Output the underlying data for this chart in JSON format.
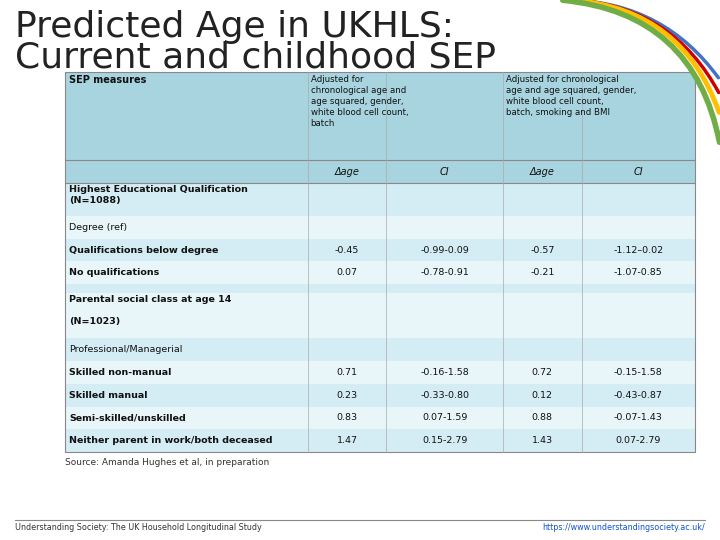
{
  "title_line1": "Predicted Age in UKHLS:",
  "title_line2": "Current and childhood SEP",
  "title_fontsize": 26,
  "title_color": "#222222",
  "bg_color": "#ffffff",
  "table_header_bg": "#a8d4e0",
  "header_col1": "SEP measures",
  "header_col2": "Adjusted for\nchronological age and\nage squared, gender,\nwhite blood cell count,\nbatch",
  "header_col3": "Adjusted for chronological\nage and age squared, gender,\nwhite blood cell count,\nbatch, smoking and BMI",
  "subheader": [
    "Δage",
    "CI",
    "Δage",
    "CI"
  ],
  "rows": [
    {
      "label": "Highest Educational Qualification\n(N=1088)",
      "bold": true,
      "data": [
        "",
        "",
        "",
        ""
      ],
      "bg": "#d4ecf4"
    },
    {
      "label": "Degree (ref)",
      "bold": false,
      "data": [
        "",
        "",
        "",
        ""
      ],
      "bg": "#e8f6fa"
    },
    {
      "label": "Qualifications below degree",
      "bold": true,
      "data": [
        "-0.45",
        "-0.99-0.09",
        "-0.57",
        "-1.12–0.02"
      ],
      "bg": "#d4ecf4"
    },
    {
      "label": "No qualifications",
      "bold": true,
      "data": [
        "0.07",
        "-0.78-0.91",
        "-0.21",
        "-1.07-0.85"
      ],
      "bg": "#e8f6fa"
    },
    {
      "label": "",
      "bold": false,
      "data": [
        "",
        "",
        "",
        ""
      ],
      "bg": "#d4ecf4"
    },
    {
      "label": "Parental social class at age 14\n\n(N=1023)",
      "bold": true,
      "data": [
        "",
        "",
        "",
        ""
      ],
      "bg": "#e8f6fa"
    },
    {
      "label": "Professional/Managerial",
      "bold": false,
      "data": [
        "",
        "",
        "",
        ""
      ],
      "bg": "#d4ecf4"
    },
    {
      "label": "Skilled non-manual",
      "bold": true,
      "data": [
        "0.71",
        "-0.16-1.58",
        "0.72",
        "-0.15-1.58"
      ],
      "bg": "#e8f6fa"
    },
    {
      "label": "Skilled manual",
      "bold": true,
      "data": [
        "0.23",
        "-0.33-0.80",
        "0.12",
        "-0.43-0.87"
      ],
      "bg": "#d4ecf4"
    },
    {
      "label": "Semi-skilled/unskilled",
      "bold": true,
      "data": [
        "0.83",
        "0.07-1.59",
        "0.88",
        "-0.07-1.43"
      ],
      "bg": "#e8f6fa"
    },
    {
      "label": "Neither parent in work/both deceased",
      "bold": true,
      "data": [
        "1.47",
        "0.15-2.79",
        "1.43",
        "0.07-2.79"
      ],
      "bg": "#d4ecf4"
    }
  ],
  "source_text": "Source: Amanda Hughes et al, in preparation",
  "footer_left": "Understanding Society: The UK Household Longitudinal Study",
  "footer_right": "https://www.understandingsociety.ac.uk/",
  "arc_colors": [
    "#4472c4",
    "#cc0000",
    "#ffc000",
    "#70ad47"
  ],
  "arc_lws": [
    2.5,
    2.5,
    3.5,
    4.0
  ],
  "footer_line_color": "#888888",
  "table_border_color": "#888888",
  "table_grid_color": "#aaaaaa"
}
